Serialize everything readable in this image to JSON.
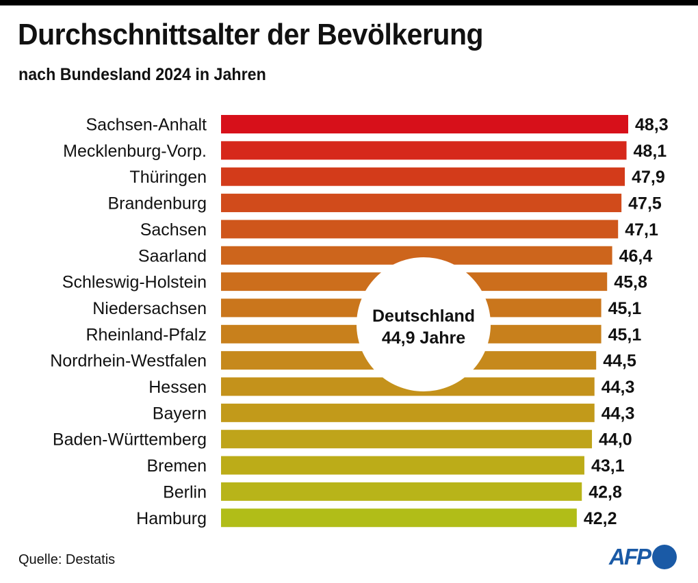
{
  "header": {
    "title": "Durchschnittsalter der Bevölkerung",
    "subtitle": "nach Bundesland 2024 in Jahren"
  },
  "footer": {
    "source": "Quelle: Destatis",
    "logo_text": "AFP",
    "logo_color": "#1a5aa6"
  },
  "chart_data": {
    "type": "bar",
    "orientation": "horizontal",
    "title": "Durchschnittsalter der Bevölkerung",
    "subtitle": "nach Bundesland 2024 in Jahren",
    "xlabel": "",
    "ylabel": "",
    "xlim": [
      0,
      48.3
    ],
    "grid": false,
    "categories": [
      "Sachsen-Anhalt",
      "Mecklenburg-Vorp.",
      "Thüringen",
      "Brandenburg",
      "Sachsen",
      "Saarland",
      "Schleswig-Holstein",
      "Niedersachsen",
      "Rheinland-Pfalz",
      "Nordrhein-Westfalen",
      "Hessen",
      "Bayern",
      "Baden-Württemberg",
      "Bremen",
      "Berlin",
      "Hamburg"
    ],
    "values": [
      48.3,
      48.1,
      47.9,
      47.5,
      47.1,
      46.4,
      45.8,
      45.1,
      45.1,
      44.5,
      44.3,
      44.3,
      44.0,
      43.1,
      42.8,
      42.2
    ],
    "value_labels": [
      "48,3",
      "48,1",
      "47,9",
      "47,5",
      "47,1",
      "46,4",
      "45,8",
      "45,1",
      "45,1",
      "44,5",
      "44,3",
      "44,3",
      "44,0",
      "43,1",
      "42,8",
      "42,2"
    ],
    "colors": [
      "#d7101a",
      "#d6281b",
      "#d33b1a",
      "#d14b1b",
      "#cf561b",
      "#cd651c",
      "#cc6e1c",
      "#ca761c",
      "#c8801c",
      "#c6891c",
      "#c4921b",
      "#c29a1a",
      "#bfa41a",
      "#bcac18",
      "#b8b419",
      "#b1bd18"
    ],
    "annotation": {
      "line1": "Deutschland",
      "line2": "44,9 Jahre",
      "value": 44.9
    }
  }
}
